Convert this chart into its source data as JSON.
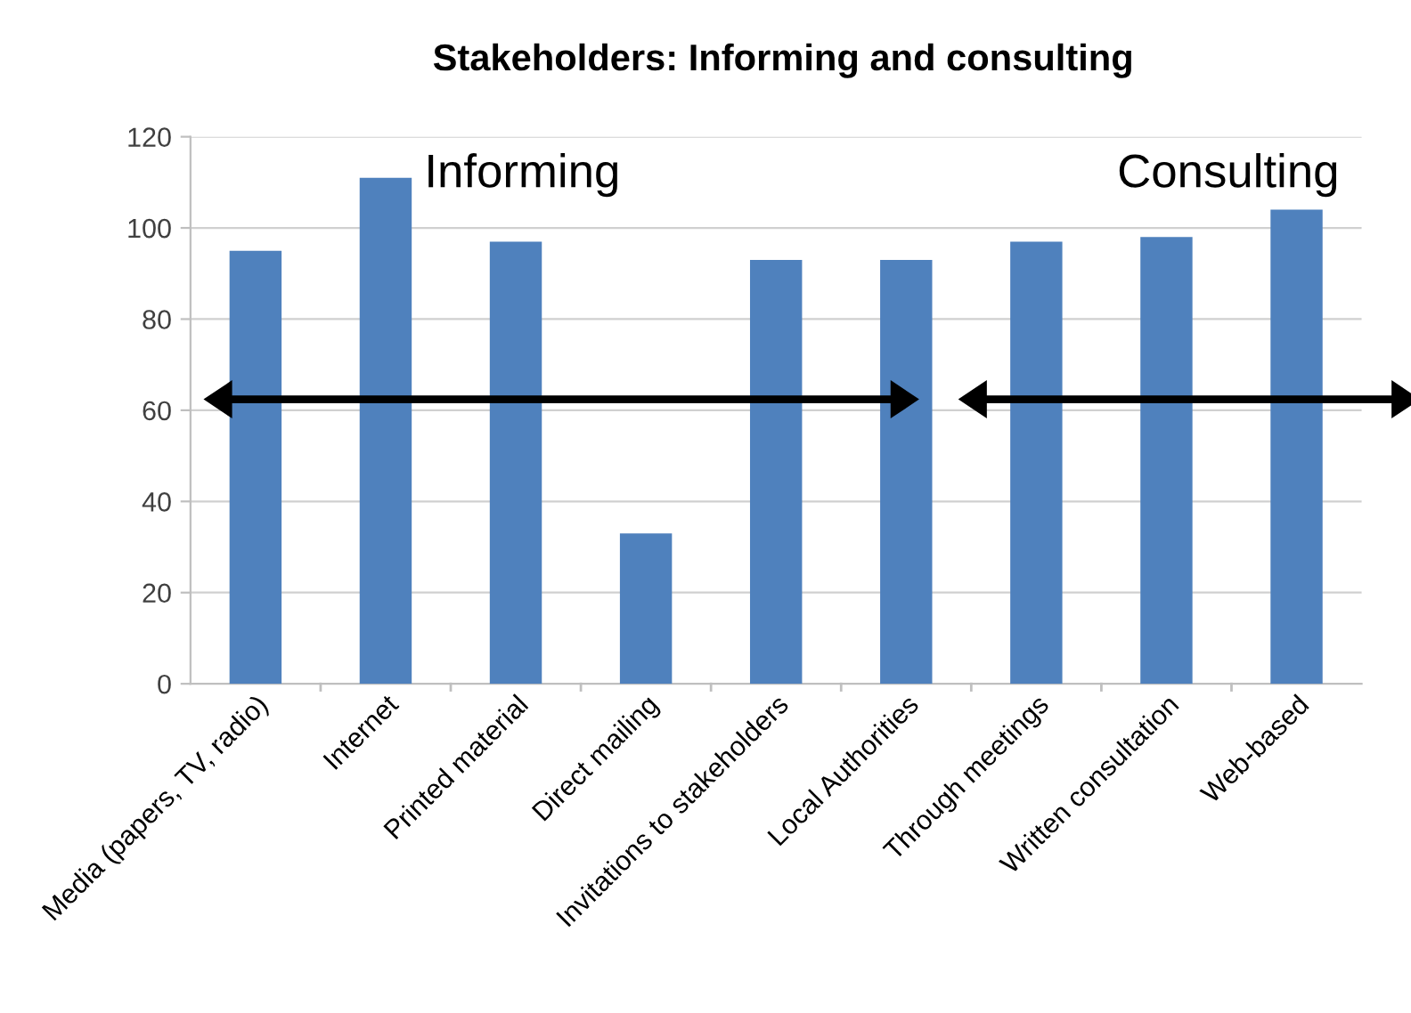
{
  "chart_data": {
    "type": "bar",
    "title": "Stakeholders: Informing and consulting",
    "categories": [
      "Media (papers, TV, radio)",
      "Internet",
      "Printed material",
      "Direct mailing",
      "Invitations to stakeholders",
      "Local Authorities",
      "Through meetings",
      "Written consultation",
      "Web-based"
    ],
    "values": [
      95,
      111,
      97,
      33,
      93,
      93,
      97,
      98,
      104
    ],
    "color": "#4f81bd",
    "ylim": [
      0,
      120
    ],
    "yticks": [
      0,
      20,
      40,
      60,
      80,
      100,
      120
    ],
    "grid": "y",
    "annotations": [
      "Informing",
      "Consulting"
    ]
  }
}
